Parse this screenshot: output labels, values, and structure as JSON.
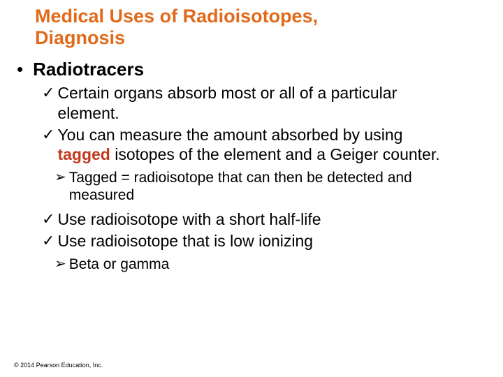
{
  "title_color": "#e06a1a",
  "tagged_color": "#c23a1e",
  "text_color": "#000000",
  "title_lines": [
    "Medical Uses of Radioisotopes,",
    "Diagnosis"
  ],
  "topic": "Radiotracers",
  "checks_a": [
    "Certain organs absorb most or all of a particular element.",
    "You can measure the amount absorbed by using <tagged>tagged</tagged> isotopes of the element and a Geiger counter."
  ],
  "arrows_a": [
    "Tagged = radioisotope that can then be detected and measured"
  ],
  "checks_b": [
    "Use radioisotope with a short half-life",
    "Use radioisotope that is low ionizing"
  ],
  "arrows_b": [
    "Beta or gamma"
  ],
  "copyright": "© 2014 Pearson Education, Inc.",
  "bullet_dot": "•",
  "check_mark": "✓",
  "arrow_mark": "➢"
}
